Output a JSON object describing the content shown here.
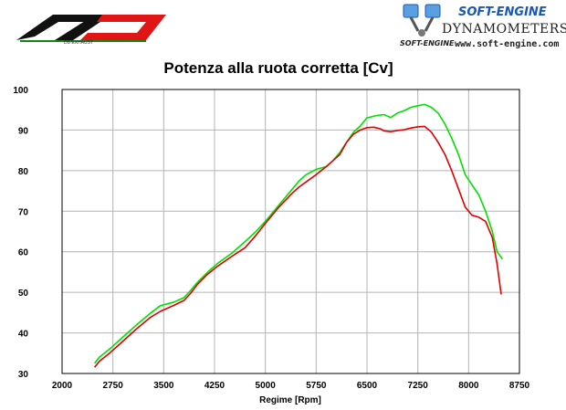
{
  "logo_left": {
    "tagline": "DB EXHAUST"
  },
  "logo_right": {
    "brand": "SOFT-ENGINE",
    "subtitle": "DYNAMOMETERS",
    "mini_logo": "SOFT-ENGINE",
    "url": "www.soft-engine.com",
    "colors": {
      "brand_blue": "#1a57b8",
      "dark": "#222222"
    }
  },
  "chart_data": {
    "type": "line",
    "title": "Potenza alla ruota corretta [Cv]",
    "xlabel": "Regime [Rpm]",
    "ylabel": "",
    "xlim": [
      2000,
      8750
    ],
    "ylim": [
      30,
      100
    ],
    "xticks": [
      2000,
      2750,
      3500,
      4250,
      5000,
      5750,
      6500,
      7250,
      8000,
      8750
    ],
    "yticks": [
      30,
      40,
      50,
      60,
      70,
      80,
      90,
      100
    ],
    "grid": true,
    "legend": "none",
    "series": [
      {
        "color": "#00e000",
        "x": [
          2480,
          2550,
          2700,
          2900,
          3100,
          3300,
          3450,
          3650,
          3800,
          3900,
          4000,
          4150,
          4300,
          4500,
          4700,
          4850,
          5000,
          5200,
          5400,
          5500,
          5600,
          5750,
          5900,
          6000,
          6100,
          6200,
          6300,
          6400,
          6500,
          6650,
          6750,
          6850,
          6950,
          7050,
          7150,
          7250,
          7350,
          7450,
          7550,
          7650,
          7750,
          7850,
          7950,
          8050,
          8150,
          8250,
          8350,
          8420,
          8500
        ],
        "y": [
          32.5,
          34.0,
          36.0,
          39.0,
          42.0,
          44.8,
          46.7,
          47.6,
          48.7,
          50.5,
          52.5,
          55.0,
          57.2,
          59.6,
          62.5,
          64.8,
          67.5,
          71.5,
          75.5,
          77.5,
          79.0,
          80.3,
          81.0,
          82.5,
          84.5,
          87.0,
          89.5,
          91.0,
          93.0,
          93.6,
          93.8,
          93.1,
          94.2,
          94.8,
          95.6,
          96.0,
          96.3,
          95.6,
          94.2,
          91.5,
          88.0,
          84.0,
          79.0,
          76.5,
          74.0,
          70.0,
          65.0,
          60.0,
          58.2
        ]
      },
      {
        "color": "#e00000",
        "x": [
          2480,
          2550,
          2700,
          2900,
          3100,
          3300,
          3450,
          3650,
          3800,
          3900,
          4000,
          4150,
          4300,
          4500,
          4700,
          4850,
          5000,
          5200,
          5400,
          5500,
          5600,
          5750,
          5900,
          6000,
          6100,
          6200,
          6300,
          6400,
          6500,
          6600,
          6700,
          6750,
          6850,
          6950,
          7050,
          7150,
          7250,
          7350,
          7450,
          7550,
          7650,
          7750,
          7850,
          7950,
          8050,
          8150,
          8250,
          8350,
          8420,
          8480
        ],
        "y": [
          31.5,
          33.0,
          35.0,
          38.0,
          41.0,
          43.8,
          45.3,
          46.8,
          48.0,
          49.8,
          52.0,
          54.5,
          56.5,
          58.8,
          61.0,
          63.8,
          67.0,
          71.0,
          74.5,
          76.0,
          77.2,
          79.0,
          81.0,
          82.5,
          84.0,
          87.0,
          89.0,
          90.0,
          90.6,
          90.7,
          90.3,
          89.8,
          89.6,
          89.9,
          90.1,
          90.5,
          90.8,
          90.9,
          89.5,
          87.0,
          84.0,
          80.0,
          75.5,
          71.0,
          69.0,
          68.5,
          67.5,
          63.5,
          57.0,
          49.5
        ]
      }
    ]
  }
}
